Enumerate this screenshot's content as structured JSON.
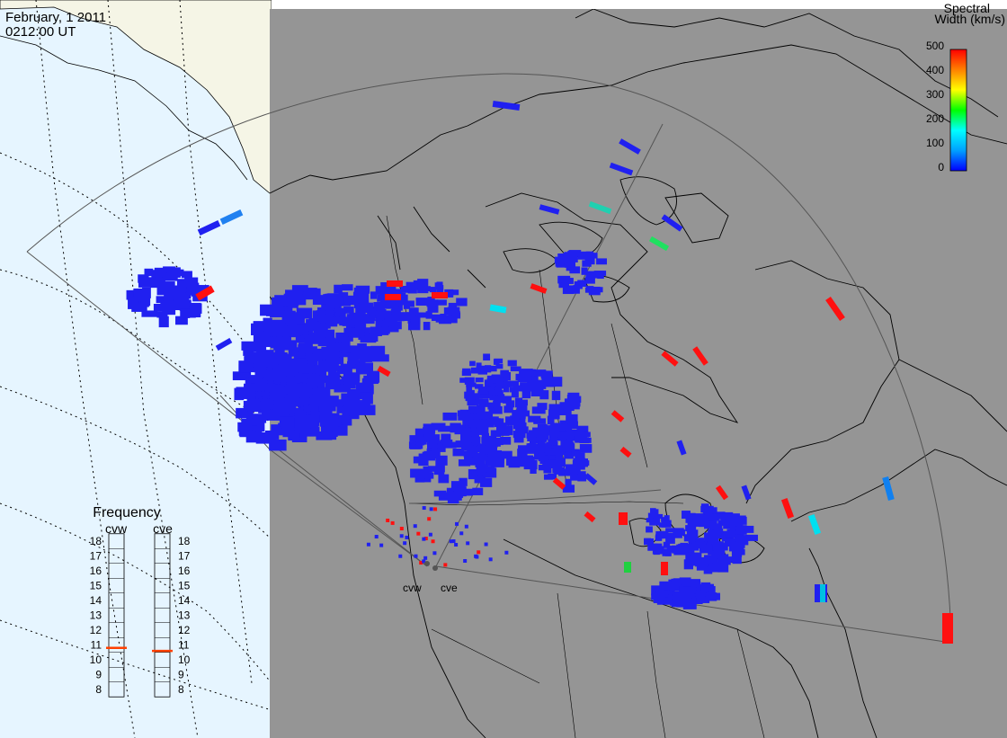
{
  "header": {
    "date": "February, 1 2011",
    "time": "0212:00 UT"
  },
  "colorbar": {
    "title_line1": "Spectral",
    "title_line2": "Width (km/s)",
    "ticks": [
      "500",
      "400",
      "300",
      "200",
      "100",
      "0"
    ],
    "colors": [
      "#0000ff",
      "#00a0ff",
      "#00ffff",
      "#00ff00",
      "#ffff00",
      "#ff8000",
      "#ff0000"
    ]
  },
  "frequency_panel": {
    "title": "Frequency",
    "radars": [
      {
        "name": "cvw",
        "value": 10.8
      },
      {
        "name": "cve",
        "value": 10.6
      }
    ],
    "ticks": [
      "18",
      "17",
      "16",
      "15",
      "14",
      "13",
      "12",
      "11",
      "10",
      "9",
      "8"
    ],
    "indicator_color": "#ff4000"
  },
  "map": {
    "stations": [
      "cvw",
      "cve"
    ],
    "land_color": "#f5f5e6",
    "ocean_color": "#e6f5ff",
    "night_color": "#959595",
    "scatter_primary_color": "#2020f0",
    "scatter_high_color": "#ff1010"
  }
}
